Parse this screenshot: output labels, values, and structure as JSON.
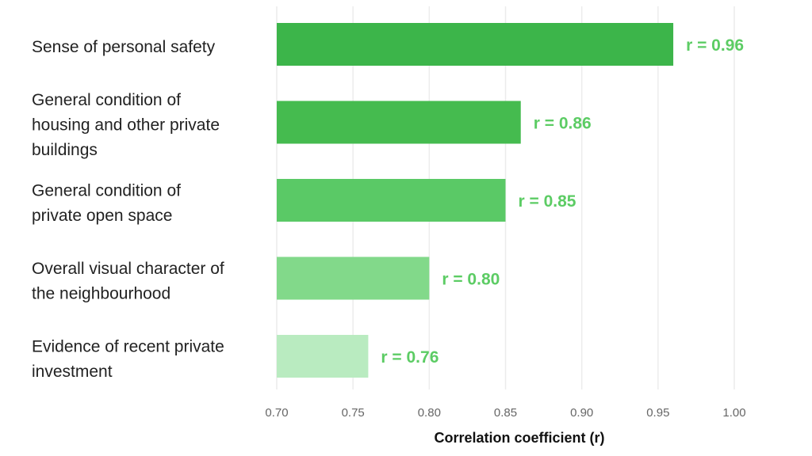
{
  "chart_data": {
    "type": "bar",
    "orientation": "horizontal",
    "category_lines": [
      [
        "Sense of personal safety"
      ],
      [
        "General condition of",
        "housing and other private",
        "buildings"
      ],
      [
        "General condition of",
        "private open space"
      ],
      [
        "Overall visual character of",
        "the neighbourhood"
      ],
      [
        "Evidence of recent private",
        "investment"
      ]
    ],
    "values": [
      0.96,
      0.86,
      0.85,
      0.8,
      0.76
    ],
    "value_labels": [
      "r = 0.96",
      "r = 0.86",
      "r = 0.85",
      "r = 0.80",
      "r = 0.76"
    ],
    "bar_colors": [
      "#3cb54a",
      "#45bb4f",
      "#5ac966",
      "#82d98a",
      "#b9ebc0"
    ],
    "label_color": "#5ccc64",
    "xlabel": "Correlation coefficient (r)",
    "ylabel": "",
    "xlim": [
      0.7,
      1.0
    ],
    "xticks": [
      "0.70",
      "0.75",
      "0.80",
      "0.85",
      "0.90",
      "0.95",
      "1.00"
    ],
    "grid": "vertical"
  }
}
